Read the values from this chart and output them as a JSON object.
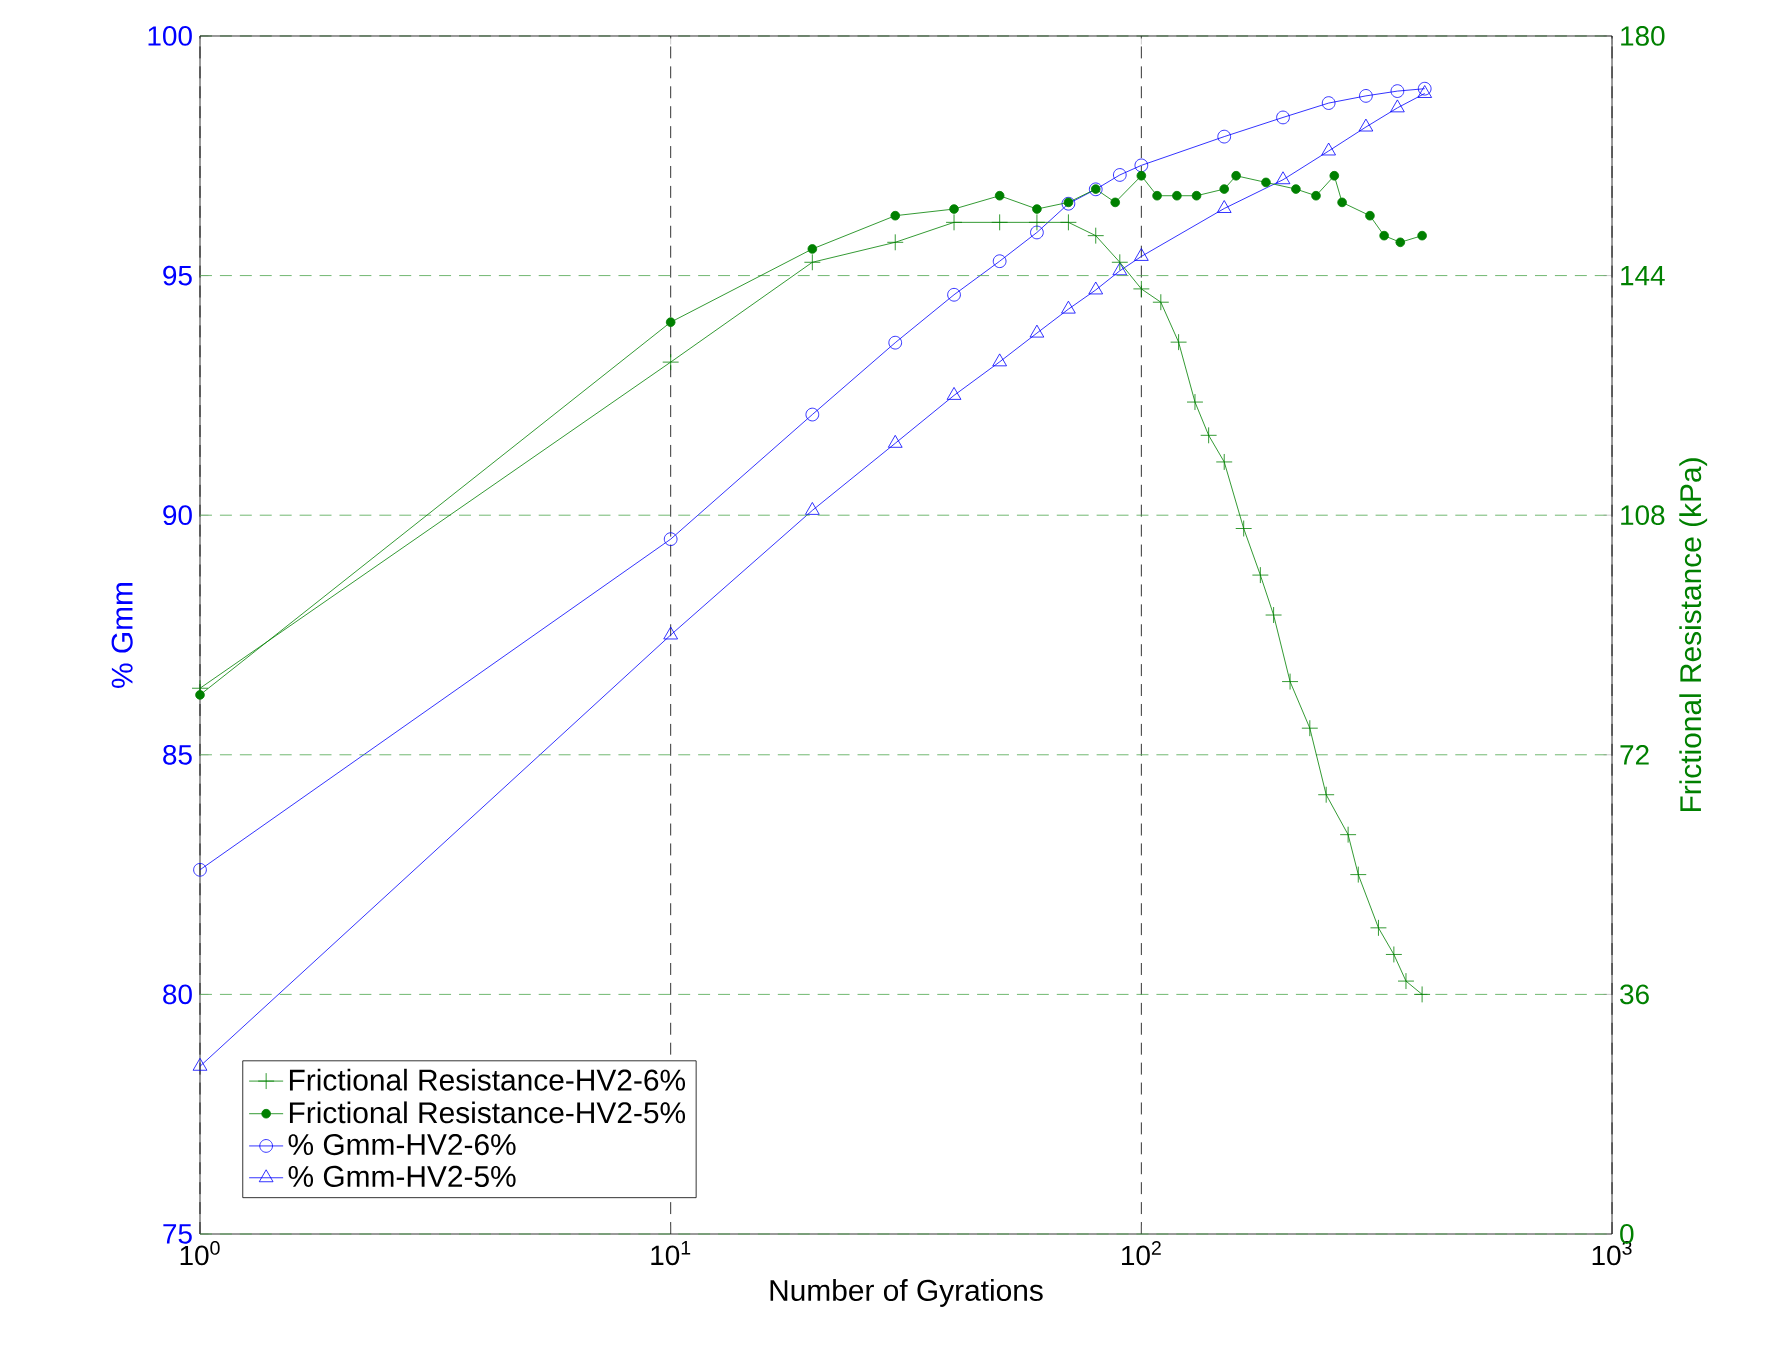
{
  "chart_data": {
    "type": "line",
    "xlabel": "Number of Gyrations",
    "ylabel": "% Gmm",
    "y2label": "Frictional Resistance (kPa)",
    "log": "x",
    "grid": true,
    "legend": "bottom left",
    "xlim": [
      1,
      1000
    ],
    "xticks": [
      {
        "value": 1,
        "label": "10$^{0}$"
      },
      {
        "value": 10,
        "label": "10$^{1}$"
      },
      {
        "value": 100,
        "label": "10$^{2}$"
      },
      {
        "value": 1000,
        "label": "10$^{3}$"
      }
    ],
    "ylim": [
      75,
      100
    ],
    "yticks": [
      75,
      80,
      85,
      90,
      95,
      100
    ],
    "y2lim": [
      0,
      180
    ],
    "y2ticks": [
      0,
      36,
      72,
      108,
      144,
      180
    ],
    "series": [
      {
        "name": "Frictional Resistance-HV2-6%",
        "color": "#008000",
        "axis": "y2",
        "marker": "cross",
        "x": [
          1,
          10,
          20,
          30,
          40,
          50,
          60,
          70,
          80,
          90,
          100,
          110,
          120,
          130,
          139,
          150,
          165,
          179,
          191,
          207,
          228,
          247,
          275,
          289,
          319,
          344,
          365,
          395
        ],
        "values": [
          82,
          131,
          146,
          149,
          152,
          152,
          152,
          152,
          150,
          146,
          142,
          140,
          134,
          125,
          120,
          116,
          106,
          99,
          93,
          83,
          76,
          66,
          60,
          54,
          46,
          42,
          38,
          36
        ]
      },
      {
        "name": "Frictional Resistance-HV2-5%",
        "color": "#008000",
        "axis": "y2",
        "marker": "circle",
        "x": [
          1,
          10,
          20,
          30,
          40,
          50,
          60,
          70,
          80,
          88,
          100,
          108,
          119,
          131,
          150,
          159,
          184,
          213,
          235,
          257,
          267,
          306,
          328,
          355,
          395
        ],
        "values": [
          81,
          137,
          148,
          153,
          154,
          156,
          154,
          155,
          157,
          155,
          159,
          156,
          156,
          156,
          157,
          159,
          158,
          157,
          156,
          159,
          155,
          153,
          150,
          149,
          150
        ]
      },
      {
        "name": "% Gmm-HV2-6%",
        "color": "#0000ff",
        "axis": "y",
        "marker": "circle",
        "x": [
          1,
          10,
          20,
          30,
          40,
          50,
          60,
          70,
          80,
          90,
          100,
          150,
          200,
          250,
          300,
          350,
          400
        ],
        "values": [
          82.6,
          89.5,
          92.1,
          93.6,
          94.6,
          95.3,
          95.9,
          96.5,
          96.8,
          97.1,
          97.3,
          97.9,
          98.3,
          98.6,
          98.75,
          98.85,
          98.9
        ]
      },
      {
        "name": "% Gmm-HV2-5%",
        "color": "#0000ff",
        "axis": "y",
        "marker": "triangle",
        "x": [
          1,
          10,
          20,
          30,
          40,
          50,
          60,
          70,
          80,
          90,
          100,
          150,
          200,
          250,
          300,
          350,
          400
        ],
        "values": [
          78.5,
          87.5,
          90.1,
          91.5,
          92.5,
          93.2,
          93.8,
          94.3,
          94.7,
          95.1,
          95.4,
          96.4,
          97.0,
          97.6,
          98.1,
          98.5,
          98.8
        ]
      }
    ]
  }
}
